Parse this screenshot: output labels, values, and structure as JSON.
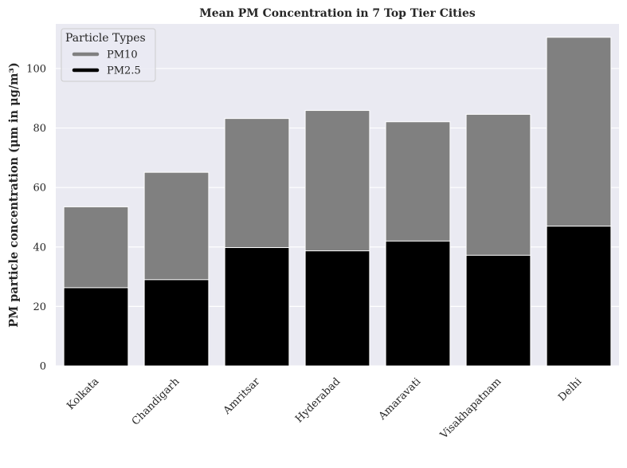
{
  "chart_data": {
    "type": "bar",
    "stacked": false,
    "overlay": true,
    "title": "Mean PM Concentration in 7 Top Tier Cities",
    "xlabel": "",
    "ylabel": "PM particle concentration (μm in μg/m³)",
    "categories": [
      "Kolkata",
      "Chandigarh",
      "Amritsar",
      "Hyderabad",
      "Amaravati",
      "Visakhapatnam",
      "Delhi"
    ],
    "series": [
      {
        "name": "PM10",
        "values": [
          53.5,
          65.1,
          83.2,
          85.9,
          82.1,
          84.6,
          110.5
        ],
        "color": "#808080"
      },
      {
        "name": "PM2.5",
        "values": [
          26.3,
          29.0,
          39.8,
          38.7,
          42.0,
          37.2,
          47.0
        ],
        "color": "#000000"
      }
    ],
    "ylim": [
      0,
      115
    ],
    "yticks": [
      0,
      20,
      40,
      60,
      80,
      100
    ],
    "grid": true,
    "background_color": "#eaeaf2",
    "legend": {
      "title": "Particle Types",
      "placement": "top-left"
    }
  }
}
